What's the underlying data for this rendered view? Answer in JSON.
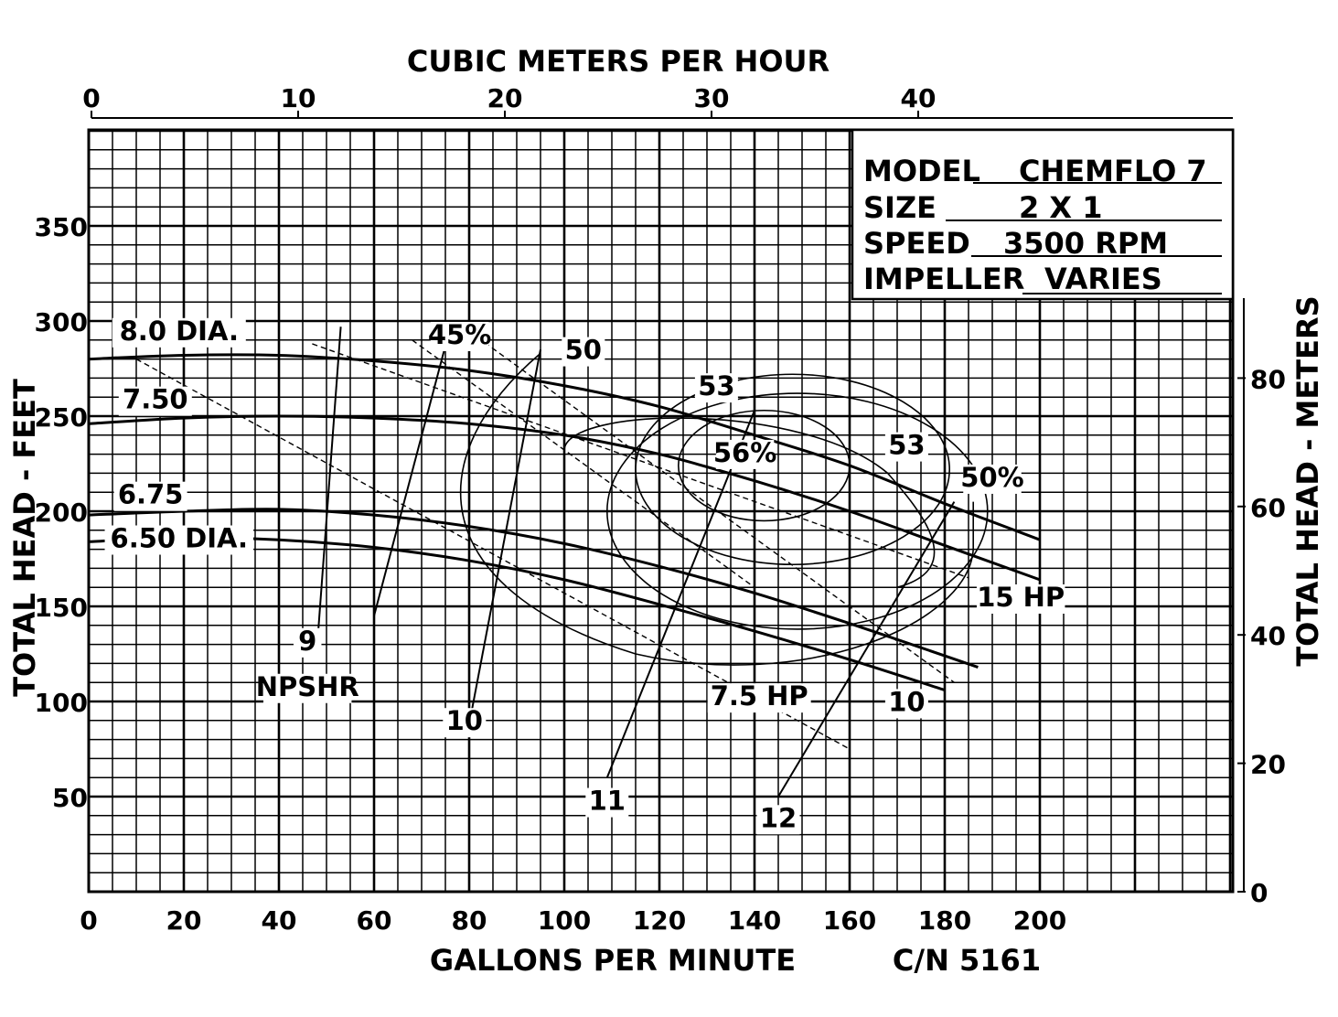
{
  "chart_data": {
    "type": "line",
    "title": "",
    "xlabel": "GALLONS PER MINUTE",
    "ylabel": "TOTAL HEAD - FEET",
    "x2label": "CUBIC METERS PER HOUR",
    "y2label": "TOTAL HEAD - METERS",
    "xlim": [
      0,
      240
    ],
    "ylim": [
      0,
      400
    ],
    "x2lim": [
      0,
      54.5
    ],
    "y2lim": [
      0,
      122
    ],
    "grid": true,
    "x_ticks": [
      0,
      20,
      40,
      60,
      80,
      100,
      120,
      140,
      160,
      180,
      200
    ],
    "y_ticks": [
      50,
      100,
      150,
      200,
      250,
      300,
      350
    ],
    "x2_ticks": [
      0,
      10,
      20,
      30,
      40
    ],
    "y2_ticks": [
      0,
      20,
      40,
      60,
      80
    ],
    "code_number": "C/N 5161",
    "info_box": {
      "model_label": "MODEL",
      "model_value": "CHEMFLO 7",
      "size_label": "SIZE",
      "size_value": "2 X 1",
      "speed_label": "SPEED",
      "speed_value": "3500 RPM",
      "impeller_label": "IMPELLER",
      "impeller_value": "VARIES"
    },
    "series": [
      {
        "name": "8.0 DIA.",
        "x": [
          0,
          20,
          40,
          60,
          80,
          100,
          120,
          140,
          160,
          180,
          200
        ],
        "y": [
          280,
          282,
          282,
          279,
          274,
          266,
          255,
          240,
          224,
          204,
          185
        ]
      },
      {
        "name": "7.50",
        "x": [
          0,
          20,
          40,
          60,
          80,
          100,
          120,
          140,
          160,
          180,
          200
        ],
        "y": [
          246,
          249,
          250,
          249,
          246,
          240,
          230,
          216,
          200,
          182,
          164
        ]
      },
      {
        "name": "6.75",
        "x": [
          0,
          20,
          40,
          60,
          80,
          100,
          120,
          140,
          160,
          180,
          187
        ],
        "y": [
          198,
          200,
          201,
          198,
          192,
          183,
          171,
          157,
          141,
          124,
          118
        ]
      },
      {
        "name": "6.50 DIA.",
        "x": [
          0,
          20,
          40,
          60,
          80,
          100,
          120,
          140,
          160,
          180
        ],
        "y": [
          184,
          186,
          185,
          181,
          174,
          164,
          151,
          137,
          122,
          106
        ]
      }
    ],
    "efficiency_contours": [
      {
        "label": "56%",
        "center": [
          142,
          224
        ],
        "rx": 18,
        "ry": 29
      },
      {
        "label": "53",
        "center": [
          148,
          222
        ],
        "rx": 33,
        "ry": 50
      },
      {
        "label": "50",
        "center": [
          149,
          200
        ],
        "rx": 40,
        "ry": 62
      },
      {
        "label": "45%"
      },
      {
        "label": "53"
      },
      {
        "label": "50%"
      }
    ],
    "power_lines": [
      {
        "label": "7.5 HP",
        "x": [
          10,
          160
        ],
        "y": [
          280,
          75
        ]
      },
      {
        "label": "15 HP",
        "x": [
          47,
          185
        ],
        "y": [
          288,
          165
        ]
      },
      {
        "label": "10",
        "x": [
          77,
          182
        ],
        "y": [
          300,
          110
        ]
      },
      {
        "label": "10",
        "x": [
          68,
          140
        ],
        "y": [
          290,
          160
        ]
      }
    ],
    "npshr": {
      "label": "NPSHR",
      "lines": [
        {
          "label": "9",
          "x": [
            48,
            53
          ],
          "y": [
            128,
            297
          ]
        },
        {
          "label": "10",
          "x": [
            80,
            95
          ],
          "y": [
            88,
            285
          ]
        },
        {
          "label": "11",
          "x": [
            109,
            140
          ],
          "y": [
            60,
            253
          ]
        },
        {
          "label": "12",
          "x": [
            145,
            182
          ],
          "y": [
            50,
            205
          ]
        }
      ]
    }
  }
}
